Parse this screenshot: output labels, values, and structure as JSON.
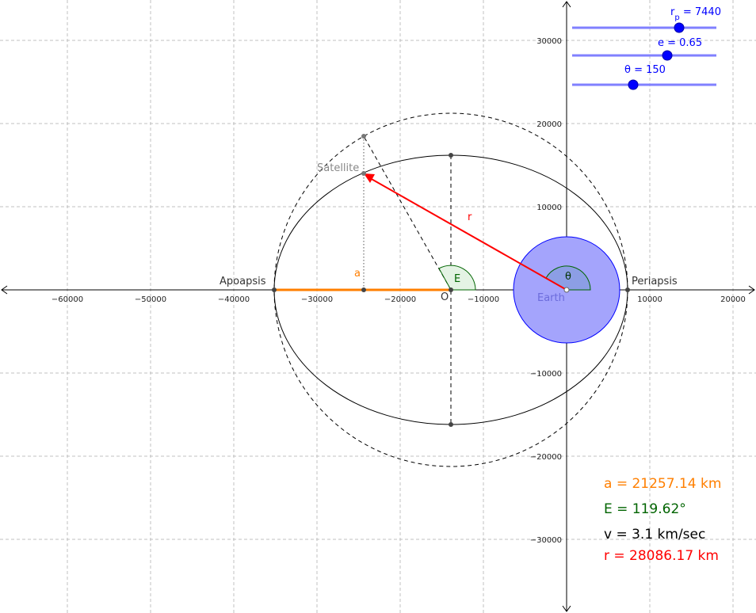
{
  "sliders": [
    {
      "id": "rp",
      "label_main": "r",
      "label_sub": "p",
      "value_text": " = 7440",
      "value": 7440
    },
    {
      "id": "e",
      "label_main": "e",
      "label_sub": "",
      "value_text": " = 0.65",
      "value": 0.65
    },
    {
      "id": "theta",
      "label_main": "θ",
      "label_sub": "",
      "value_text": " = 150",
      "value": 150
    }
  ],
  "labels": {
    "satellite": "Satellite",
    "apoapsis": "Apoapsis",
    "periapsis": "Periapsis",
    "earth": "Earth",
    "center": "O",
    "a": "a",
    "r": "r",
    "E": "E",
    "theta": "θ"
  },
  "readouts": {
    "a": "a = 21257.14 km",
    "E": "E = 119.62°",
    "v": "v = 3.1 km/sec",
    "r": "r = 28086.17 km"
  },
  "colors": {
    "a": "#ff7f00",
    "E": "#006400",
    "v": "#000000",
    "r": "#ff0000",
    "earth_fill": "#a4a4fc",
    "earth_stroke": "#0000ff",
    "slider": "#0000ff"
  },
  "axes": {
    "x_ticks": [
      -60000,
      -50000,
      -40000,
      -30000,
      -20000,
      -10000,
      10000,
      20000
    ],
    "x_tick_labels": [
      "−60000",
      "−50000",
      "−40000",
      "−30000",
      "−20000",
      "−10000",
      "10000",
      "20000"
    ],
    "y_ticks": [
      30000,
      20000,
      10000,
      -10000,
      -20000,
      -30000
    ],
    "y_tick_labels": [
      "30000",
      "20000",
      "10000",
      "−10000",
      "−20000",
      "−30000"
    ],
    "origin_label": "0",
    "grid": true
  }
}
